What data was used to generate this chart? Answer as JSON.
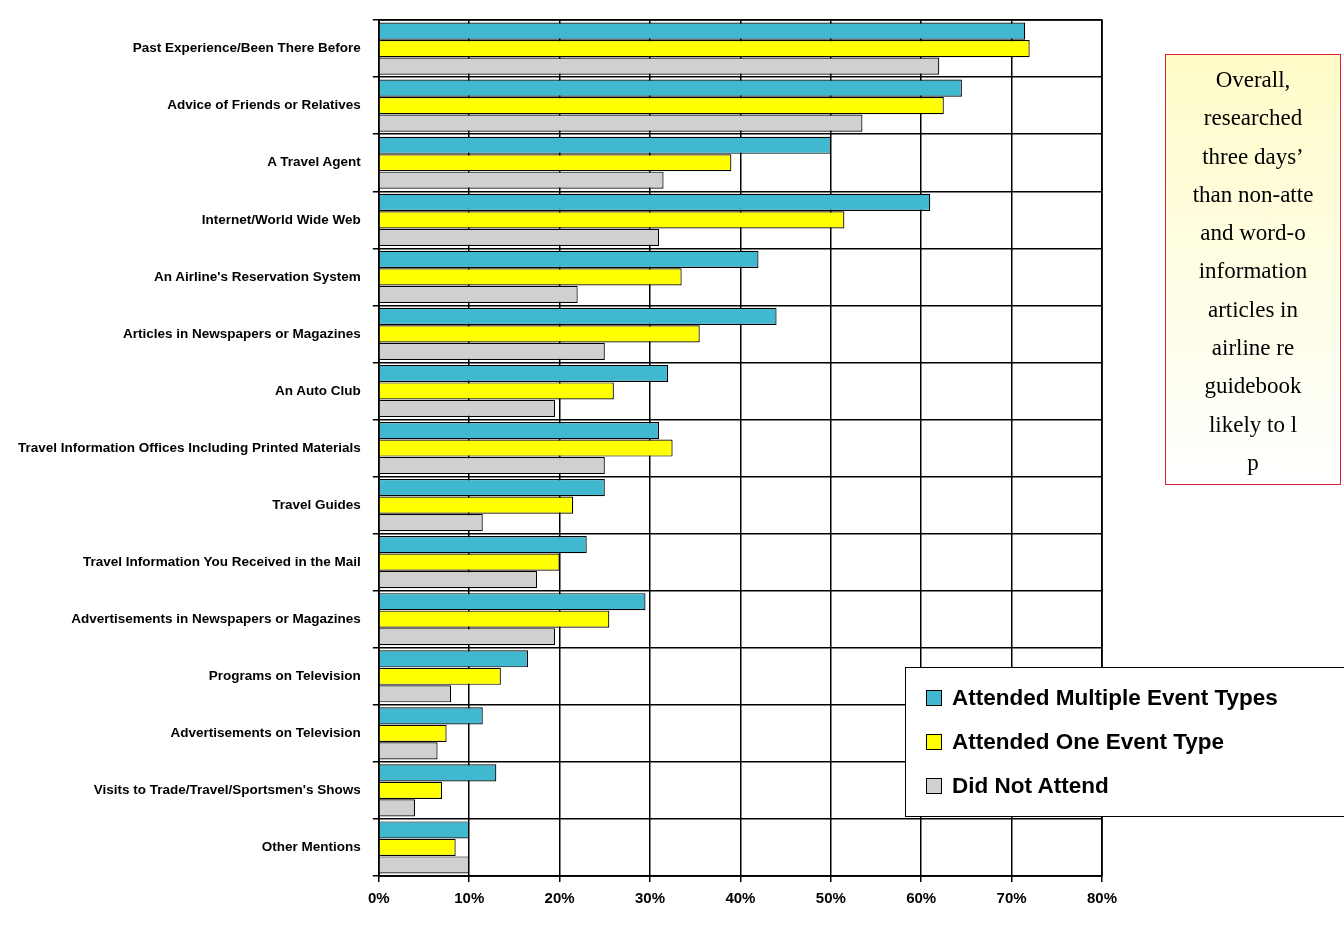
{
  "chart_data": {
    "type": "bar",
    "orientation": "horizontal",
    "categories": [
      "Past Experience/Been There Before",
      "Advice of Friends or Relatives",
      "A Travel Agent",
      "Internet/World Wide Web",
      "An Airline's Reservation System",
      "Articles in Newspapers or Magazines",
      "An Auto Club",
      "Travel Information Offices Including Printed Materials",
      "Travel Guides",
      "Travel Information You Received in the Mail",
      "Advertisements in Newspapers or Magazines",
      "Programs on Television",
      "Advertisements on Television",
      "Visits to Trade/Travel/Sportsmen's Shows",
      "Other Mentions"
    ],
    "series": [
      {
        "name": "Attended Multiple Event Types",
        "color": "#40b8d0",
        "values": [
          71.5,
          64.5,
          50,
          61,
          42,
          44,
          32,
          31,
          25,
          23,
          29.5,
          16.5,
          11.5,
          13,
          10
        ]
      },
      {
        "name": "Attended One Event Type",
        "color": "#ffff00",
        "values": [
          72,
          62.5,
          39,
          51.5,
          33.5,
          35.5,
          26,
          32.5,
          21.5,
          20,
          25.5,
          13.5,
          7.5,
          7,
          8.5
        ]
      },
      {
        "name": "Did Not Attend",
        "color": "#d0d0d0",
        "values": [
          62,
          53.5,
          31.5,
          31,
          22,
          25,
          19.5,
          25,
          11.5,
          17.5,
          19.5,
          8,
          6.5,
          4,
          10
        ]
      }
    ],
    "xlim": [
      0,
      80
    ],
    "xticks": [
      {
        "value": 0,
        "label": "0%"
      },
      {
        "value": 10,
        "label": "10%"
      },
      {
        "value": 20,
        "label": "20%"
      },
      {
        "value": 30,
        "label": "30%"
      },
      {
        "value": 40,
        "label": "40%"
      },
      {
        "value": 50,
        "label": "50%"
      },
      {
        "value": 60,
        "label": "60%"
      },
      {
        "value": 70,
        "label": "70%"
      },
      {
        "value": 80,
        "label": "80%"
      }
    ],
    "grid": true,
    "legend": "bottom right",
    "annotations": [
      "Overall,\nresearched\nthree days’\nthan non-atte\nand word-o\ninformation\narticles in\nairline re\nguidebook\nlikely to l\np"
    ]
  }
}
